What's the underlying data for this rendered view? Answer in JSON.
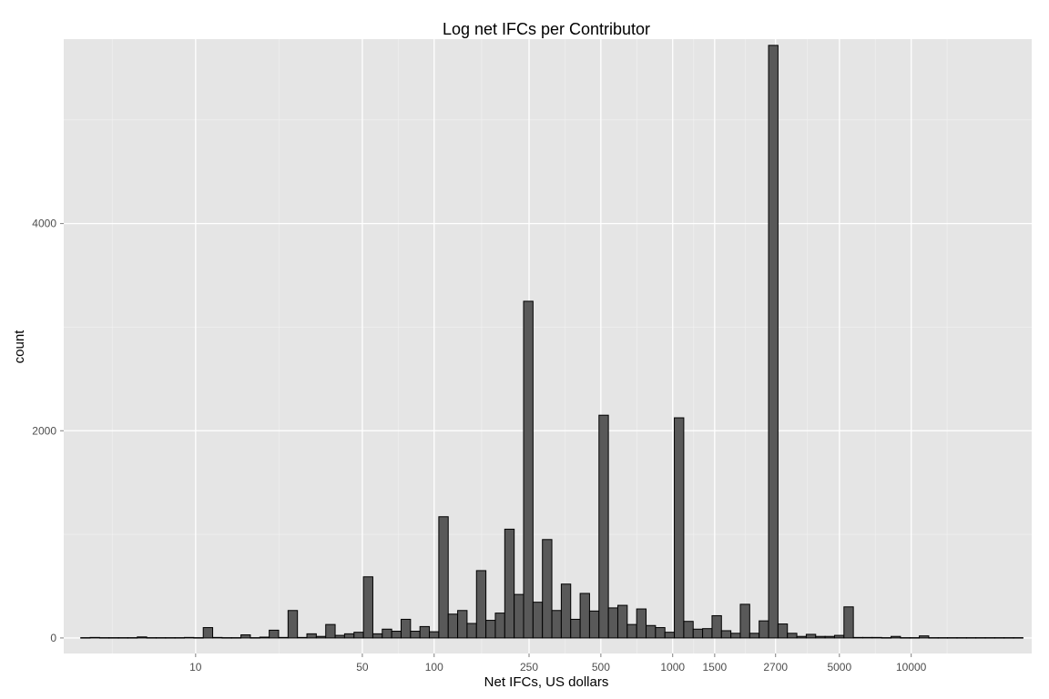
{
  "chart_data": {
    "type": "bar",
    "title": "Log net IFCs per Contributor",
    "xlabel": "Net IFCs, US dollars",
    "ylabel": "count",
    "x_scale": "log10",
    "xlim": [
      2.8,
      32000
    ],
    "ylim": [
      -150,
      5780
    ],
    "x_ticks": [
      10,
      50,
      100,
      250,
      500,
      1000,
      1500,
      2700,
      5000,
      10000
    ],
    "y_ticks": [
      0,
      2000,
      4000
    ],
    "bin_start": 3.3,
    "bin_width_log10": 0.0395,
    "values": [
      3,
      5,
      3,
      3,
      3,
      3,
      10,
      3,
      3,
      3,
      3,
      5,
      3,
      100,
      5,
      3,
      3,
      30,
      3,
      8,
      75,
      5,
      265,
      5,
      40,
      15,
      130,
      25,
      40,
      55,
      590,
      40,
      85,
      65,
      180,
      65,
      110,
      60,
      1170,
      230,
      265,
      140,
      650,
      170,
      240,
      1050,
      420,
      3250,
      345,
      950,
      265,
      520,
      180,
      430,
      260,
      2150,
      290,
      315,
      130,
      280,
      120,
      100,
      55,
      2125,
      160,
      85,
      90,
      215,
      70,
      45,
      325,
      45,
      165,
      5720,
      135,
      45,
      15,
      35,
      15,
      15,
      25,
      300,
      5,
      5,
      5,
      3,
      15,
      3,
      3,
      20,
      3,
      3,
      3,
      3,
      3,
      3,
      3,
      3,
      3,
      3
    ],
    "colors": {
      "panel": "#e5e5e5",
      "grid_major": "#ffffff",
      "grid_minor": "#f2f2f2",
      "bar_fill": "#595959",
      "bar_stroke": "#000000"
    },
    "grid": true,
    "legend": "none"
  }
}
